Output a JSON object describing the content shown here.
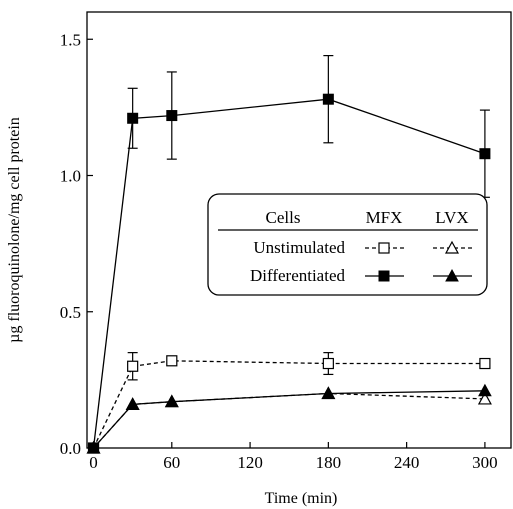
{
  "chart_data": {
    "type": "line",
    "xlabel": "Time (min)",
    "ylabel": "µg fluoroquinolone/mg cell protein",
    "xlim": [
      -5,
      320
    ],
    "ylim": [
      0,
      1.6
    ],
    "x_ticks": [
      0,
      60,
      120,
      180,
      240,
      300
    ],
    "x_tick_labels": [
      "0",
      "60",
      "120",
      "180",
      "240",
      "300"
    ],
    "y_ticks": [
      0.0,
      0.5,
      1.0,
      1.5
    ],
    "y_tick_labels": [
      "0.0",
      "0.5",
      "1.0",
      "1.5"
    ],
    "grid": false,
    "legend": {
      "placement": "center-right",
      "header": {
        "cells": "Cells",
        "mfx": "MFX",
        "lvx": "LVX"
      },
      "rows": [
        "Unstimulated",
        "Differentiated"
      ]
    },
    "series": [
      {
        "key": "unstim_mfx",
        "x": [
          0,
          30,
          60,
          180,
          300
        ],
        "y": [
          0.0,
          0.3,
          0.32,
          0.31,
          0.31
        ],
        "err": [
          0,
          0.05,
          0,
          0.04,
          0
        ],
        "marker": "square-open",
        "line": "dashed"
      },
      {
        "key": "unstim_lvx",
        "x": [
          0,
          30,
          60,
          180,
          300
        ],
        "y": [
          0.0,
          0.16,
          0.17,
          0.2,
          0.18
        ],
        "err": [
          0,
          0,
          0,
          0,
          0
        ],
        "marker": "triangle-open",
        "line": "dashed"
      },
      {
        "key": "diff_mfx",
        "x": [
          0,
          30,
          60,
          180,
          300
        ],
        "y": [
          0.0,
          1.21,
          1.22,
          1.28,
          1.08
        ],
        "err": [
          0,
          0.11,
          0.16,
          0.16,
          0.16
        ],
        "marker": "square-filled",
        "line": "solid"
      },
      {
        "key": "diff_lvx",
        "x": [
          0,
          30,
          60,
          180,
          300
        ],
        "y": [
          0.0,
          0.16,
          0.17,
          0.2,
          0.21
        ],
        "err": [
          0,
          0,
          0,
          0,
          0
        ],
        "marker": "triangle-filled",
        "line": "solid"
      }
    ]
  }
}
